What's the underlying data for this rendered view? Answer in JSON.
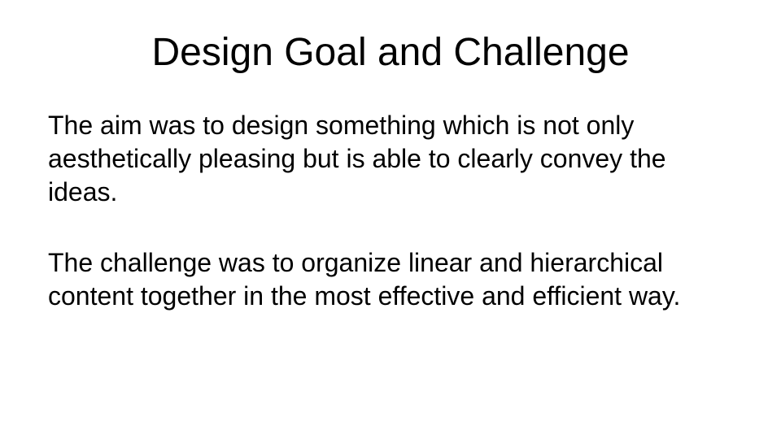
{
  "slide": {
    "title": "Design Goal and Challenge",
    "paragraphs": [
      "The aim was to design something which is not only aesthetically pleasing but is able to clearly convey the ideas.",
      "The challenge was to organize linear and hierarchical content together in the most effective and efficient way."
    ]
  }
}
